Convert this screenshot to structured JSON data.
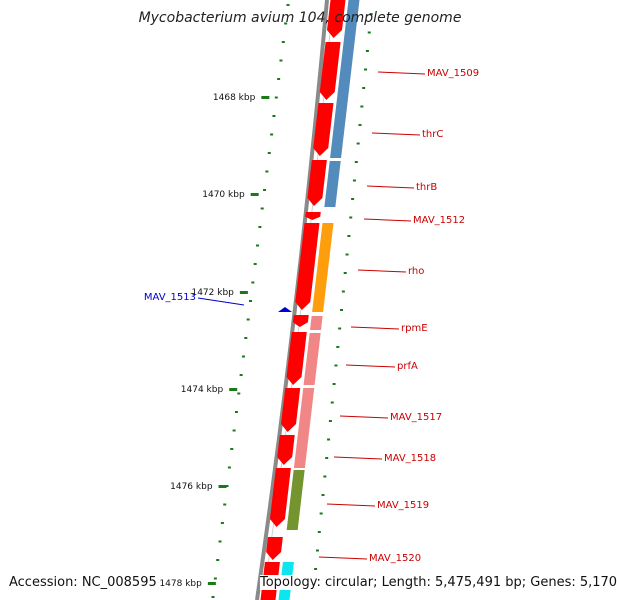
{
  "title": "Mycobacterium avium 104, complete genome",
  "footer": {
    "accession": "Accession: NC_008595",
    "summary": "Topology: circular; Length: 5,475,491 bp; Genes: 5,170"
  },
  "colors": {
    "backbone": "#8a8a8a",
    "tick": "#1a7a1a",
    "gene_arrow": "#ff0000",
    "cog_blue": "#4a86b8",
    "cog_orange": "#ff9900",
    "cog_pink": "#f08080",
    "cog_olive": "#6b8e23",
    "cog_cyan": "#00e5ee",
    "gene_label": "#cc0000",
    "reverse_gene": "#0000cc"
  },
  "ticks": [
    {
      "label": "1468 kbp",
      "kbp": 1468
    },
    {
      "label": "1470 kbp",
      "kbp": 1470
    },
    {
      "label": "1472 kbp",
      "kbp": 1472
    },
    {
      "label": "1474 kbp",
      "kbp": 1474
    },
    {
      "label": "1476 kbp",
      "kbp": 1476
    },
    {
      "label": "1478 kbp",
      "kbp": 1478
    }
  ],
  "genes": [
    {
      "label": "MAV_1509",
      "cog": "blue"
    },
    {
      "label": "thrC",
      "cog": "blue"
    },
    {
      "label": "thrB",
      "cog": "blue"
    },
    {
      "label": "MAV_1512",
      "cog": "none"
    },
    {
      "label": "rho",
      "cog": "orange"
    },
    {
      "label": "rpmE",
      "cog": "pink"
    },
    {
      "label": "prfA",
      "cog": "pink"
    },
    {
      "label": "MAV_1517",
      "cog": "pink"
    },
    {
      "label": "MAV_1518",
      "cog": "pink"
    },
    {
      "label": "MAV_1519",
      "cog": "olive"
    },
    {
      "label": "MAV_1520",
      "cog": "cyan"
    }
  ],
  "reverse_genes": [
    {
      "label": "MAV_1513"
    }
  ]
}
